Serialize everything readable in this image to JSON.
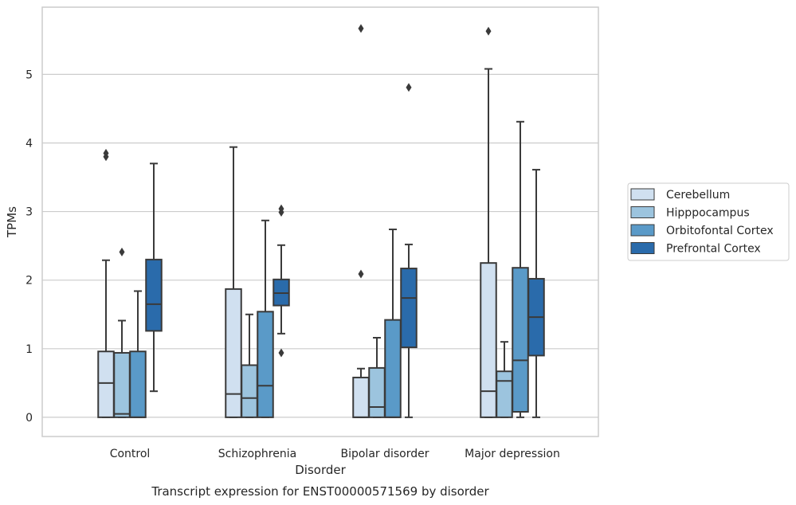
{
  "chart_data": {
    "type": "box",
    "caption": "Transcript expression for ENST00000571569 by disorder",
    "xlabel": "Disorder",
    "ylabel": "TPMs",
    "ylim": [
      -0.28,
      5.98
    ],
    "yticks": [
      0,
      1,
      2,
      3,
      4,
      5
    ],
    "grid": "horizontal",
    "legend_position": "right",
    "categories": [
      "Control",
      "Schizophrenia",
      "Bipolar disorder",
      "Major depression"
    ],
    "series": [
      {
        "name": "Cerebellum",
        "color": "#d0e0f0",
        "boxes": [
          {
            "q1": 0,
            "median": 0.5,
            "q3": 0.96,
            "whisker_low": 0,
            "whisker_high": 2.29,
            "outliers": [
              3.8,
              3.85
            ]
          },
          {
            "q1": 0,
            "median": 0.34,
            "q3": 1.87,
            "whisker_low": 0,
            "whisker_high": 3.94,
            "outliers": []
          },
          {
            "q1": 0,
            "median": 0,
            "q3": 0.58,
            "whisker_low": 0,
            "whisker_high": 0.71,
            "outliers": [
              2.09,
              5.67
            ]
          },
          {
            "q1": 0,
            "median": 0.38,
            "q3": 2.25,
            "whisker_low": 0,
            "whisker_high": 5.08,
            "outliers": [
              5.63
            ]
          }
        ]
      },
      {
        "name": "Hipppocampus",
        "color": "#9cc4de",
        "boxes": [
          {
            "q1": 0,
            "median": 0.05,
            "q3": 0.94,
            "whisker_low": 0,
            "whisker_high": 1.41,
            "outliers": [
              2.41
            ]
          },
          {
            "q1": 0,
            "median": 0.28,
            "q3": 0.76,
            "whisker_low": 0,
            "whisker_high": 1.5,
            "outliers": []
          },
          {
            "q1": 0,
            "median": 0.15,
            "q3": 0.72,
            "whisker_low": 0,
            "whisker_high": 1.16,
            "outliers": []
          },
          {
            "q1": 0,
            "median": 0.53,
            "q3": 0.67,
            "whisker_low": 0,
            "whisker_high": 1.1,
            "outliers": []
          }
        ]
      },
      {
        "name": "Orbitofontal Cortex",
        "color": "#5a9ac8",
        "boxes": [
          {
            "q1": 0,
            "median": 0,
            "q3": 0.96,
            "whisker_low": 0,
            "whisker_high": 1.84,
            "outliers": []
          },
          {
            "q1": 0,
            "median": 0.46,
            "q3": 1.54,
            "whisker_low": 0,
            "whisker_high": 2.87,
            "outliers": []
          },
          {
            "q1": 0,
            "median": 0,
            "q3": 1.42,
            "whisker_low": 0,
            "whisker_high": 2.74,
            "outliers": []
          },
          {
            "q1": 0.08,
            "median": 0.83,
            "q3": 2.18,
            "whisker_low": 0,
            "whisker_high": 4.31,
            "outliers": []
          }
        ]
      },
      {
        "name": "Prefrontal Cortex",
        "color": "#2a6bab",
        "boxes": [
          {
            "q1": 1.26,
            "median": 1.65,
            "q3": 2.3,
            "whisker_low": 0.38,
            "whisker_high": 3.7,
            "outliers": []
          },
          {
            "q1": 1.63,
            "median": 1.81,
            "q3": 2.01,
            "whisker_low": 1.22,
            "whisker_high": 2.51,
            "outliers": [
              0.94,
              2.99,
              3.04
            ]
          },
          {
            "q1": 1.02,
            "median": 1.74,
            "q3": 2.17,
            "whisker_low": 0,
            "whisker_high": 2.52,
            "outliers": [
              4.81
            ]
          },
          {
            "q1": 0.9,
            "median": 1.46,
            "q3": 2.02,
            "whisker_low": 0,
            "whisker_high": 3.61,
            "outliers": []
          }
        ]
      }
    ]
  }
}
